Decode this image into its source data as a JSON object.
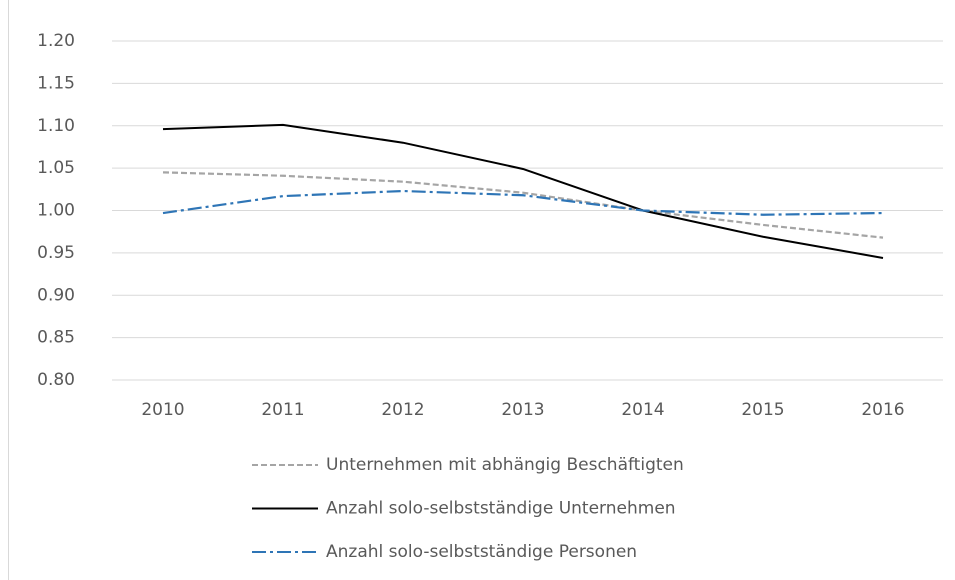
{
  "chart_data": {
    "type": "line",
    "categories": [
      "2010",
      "2011",
      "2012",
      "2013",
      "2014",
      "2015",
      "2016"
    ],
    "series": [
      {
        "name": "Unternehmen mit abhängig Beschäftigten",
        "color": "#a5a5a5",
        "dash": "dashed",
        "values": [
          1.045,
          1.041,
          1.034,
          1.021,
          1.0,
          0.983,
          0.968
        ]
      },
      {
        "name": "Anzahl solo-selbstständige Unternehmen",
        "color": "#000000",
        "dash": "solid",
        "values": [
          1.096,
          1.101,
          1.08,
          1.049,
          1.0,
          0.969,
          0.944
        ]
      },
      {
        "name": "Anzahl solo-selbstständige Personen",
        "color": "#2e75b6",
        "dash": "dashdot",
        "values": [
          0.997,
          1.017,
          1.023,
          1.018,
          1.0,
          0.995,
          0.997
        ]
      }
    ],
    "ylim": [
      0.8,
      1.2
    ],
    "yticks": [
      {
        "value": 0.8,
        "label": "0.80"
      },
      {
        "value": 0.85,
        "label": "0.85"
      },
      {
        "value": 0.9,
        "label": "0.90"
      },
      {
        "value": 0.95,
        "label": "0.95"
      },
      {
        "value": 1.0,
        "label": "1.00"
      },
      {
        "value": 1.05,
        "label": "1.05"
      },
      {
        "value": 1.1,
        "label": "1.10"
      },
      {
        "value": 1.15,
        "label": "1.15"
      },
      {
        "value": 1.2,
        "label": "1.20"
      }
    ],
    "grid": true,
    "legend": "bottom"
  }
}
